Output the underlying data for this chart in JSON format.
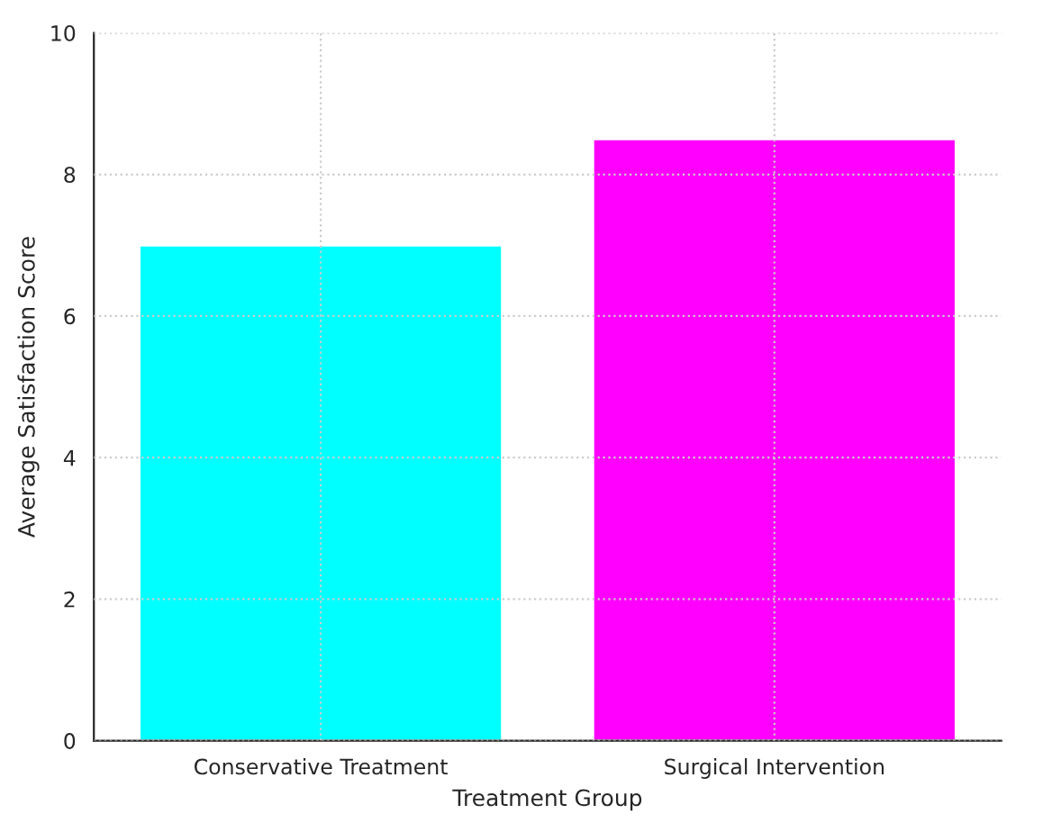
{
  "chart_data": {
    "type": "bar",
    "xlabel": "Treatment Group",
    "ylabel": "Average Satisfaction Score",
    "categories": [
      "Conservative Treatment",
      "Surgical Intervention"
    ],
    "values": [
      7,
      8.5
    ],
    "colors": [
      "#00ffff",
      "#ff00ff"
    ],
    "ylim": [
      0,
      10
    ],
    "yticks": [
      0,
      2,
      4,
      6,
      8,
      10
    ],
    "grid": true
  }
}
